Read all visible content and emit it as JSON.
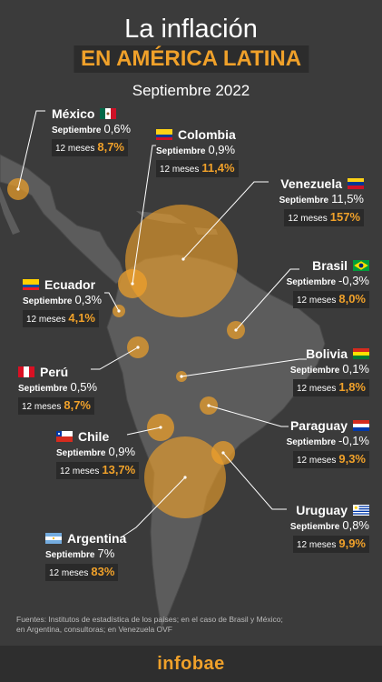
{
  "header": {
    "title_line1": "La inflación",
    "title_line2": "EN AMÉRICA LATINA",
    "subtitle": "Septiembre 2022"
  },
  "label_month": "Septiembre",
  "label_12m": "12 meses",
  "countries": {
    "mexico": {
      "name": "México",
      "month": "0,6%",
      "year": "8,7%"
    },
    "colombia": {
      "name": "Colombia",
      "month": "0,9%",
      "year": "11,4%"
    },
    "venezuela": {
      "name": "Venezuela",
      "month": "11,5%",
      "year": "157%"
    },
    "ecuador": {
      "name": "Ecuador",
      "month": "0,3%",
      "year": "4,1%"
    },
    "brasil": {
      "name": "Brasil",
      "month": "-0,3%",
      "year": "8,0%"
    },
    "peru": {
      "name": "Perú",
      "month": "0,5%",
      "year": "8,7%"
    },
    "bolivia": {
      "name": "Bolivia",
      "month": "0,1%",
      "year": "1,8%"
    },
    "chile": {
      "name": "Chile",
      "month": "0,9%",
      "year": "13,7%"
    },
    "paraguay": {
      "name": "Paraguay",
      "month": "-0,1%",
      "year": "9,3%"
    },
    "uruguay": {
      "name": "Uruguay",
      "month": "0,8%",
      "year": "9,9%"
    },
    "argentina": {
      "name": "Argentina",
      "month": "7%",
      "year": "83%"
    }
  },
  "sources": "Fuentes: Institutos de estadística de los países; en el caso de Brasil y México; en Argentina, consultoras; en Venezuela OVF",
  "footer": {
    "logo": "infobae"
  },
  "colors": {
    "accent": "#f0a12a",
    "background": "#3b3b3b",
    "land": "#5c5c5c"
  }
}
